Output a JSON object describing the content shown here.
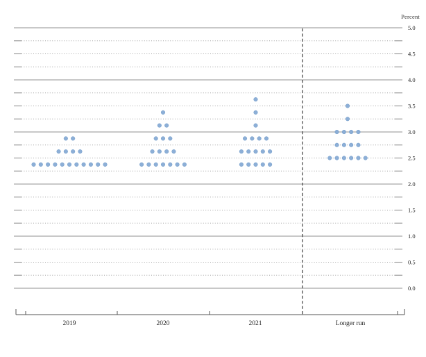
{
  "colors": {
    "dot_fill": "#87abd5",
    "dot_stroke": "#6f9bc9",
    "grid_solid": "#909090",
    "grid_dotted": "#a3a3a3",
    "separator": "#555555",
    "axis": "#555555",
    "text": "#222222"
  },
  "chart_data": {
    "type": "scatter",
    "subtype": "fomc-dot-plot",
    "ylabel": "Percent",
    "ylim": [
      0.0,
      5.0
    ],
    "grid_step": 0.25,
    "ytick_labels": [
      "0.0",
      "0.5",
      "1.0",
      "1.5",
      "2.0",
      "2.5",
      "3.0",
      "3.5",
      "4.0",
      "4.5",
      "5.0"
    ],
    "grid": "on",
    "legend": "none",
    "categories": [
      "2019",
      "2020",
      "2021",
      "Longer run"
    ],
    "series": [
      {
        "name": "2019",
        "dots": [
          {
            "value": 2.375,
            "count": 11
          },
          {
            "value": 2.625,
            "count": 4
          },
          {
            "value": 2.875,
            "count": 2
          }
        ]
      },
      {
        "name": "2020",
        "dots": [
          {
            "value": 2.375,
            "count": 7
          },
          {
            "value": 2.625,
            "count": 4
          },
          {
            "value": 2.875,
            "count": 3
          },
          {
            "value": 3.125,
            "count": 2
          },
          {
            "value": 3.375,
            "count": 1
          }
        ]
      },
      {
        "name": "2021",
        "dots": [
          {
            "value": 2.375,
            "count": 5
          },
          {
            "value": 2.625,
            "count": 5
          },
          {
            "value": 2.875,
            "count": 4
          },
          {
            "value": 3.125,
            "count": 1
          },
          {
            "value": 3.375,
            "count": 1
          },
          {
            "value": 3.625,
            "count": 1
          }
        ]
      },
      {
        "name": "Longer run",
        "dots": [
          {
            "value": 2.5,
            "count": 6
          },
          {
            "value": 2.75,
            "count": 4
          },
          {
            "value": 3.0,
            "count": 4
          },
          {
            "value": 3.25,
            "count": 1
          },
          {
            "value": 3.5,
            "count": 1
          }
        ]
      }
    ]
  }
}
